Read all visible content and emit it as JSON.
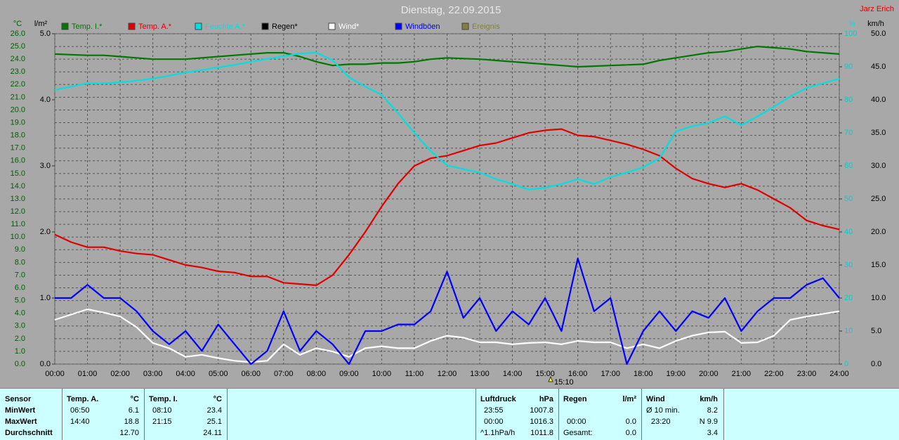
{
  "chart_data": {
    "type": "line",
    "title": "Dienstag, 22.09.2015",
    "author": "Jarz Erich",
    "axis_labels": {
      "y": "°C",
      "y2": "l/m²",
      "y3": "%",
      "y4": "km/h"
    },
    "x": [
      0,
      0.5,
      1,
      1.5,
      2,
      2.5,
      3,
      3.5,
      4,
      4.5,
      5,
      5.5,
      6,
      6.5,
      7,
      7.5,
      8,
      8.5,
      9,
      9.5,
      10,
      10.5,
      11,
      11.5,
      12,
      12.5,
      13,
      13.5,
      14,
      14.5,
      15,
      15.5,
      16,
      16.5,
      17,
      17.5,
      18,
      18.5,
      19,
      19.5,
      20,
      20.5,
      21,
      21.5,
      22,
      22.5,
      23,
      23.5,
      24
    ],
    "xlim": [
      0,
      24
    ],
    "xticks": [
      {
        "value": 0,
        "label": "00:00"
      },
      {
        "value": 1,
        "label": "01:00"
      },
      {
        "value": 2,
        "label": "02:00"
      },
      {
        "value": 3,
        "label": "03:00"
      },
      {
        "value": 4,
        "label": "04:00"
      },
      {
        "value": 5,
        "label": "05:00"
      },
      {
        "value": 6,
        "label": "06:00"
      },
      {
        "value": 7,
        "label": "07:00"
      },
      {
        "value": 8,
        "label": "08:00"
      },
      {
        "value": 9,
        "label": "09:00"
      },
      {
        "value": 10,
        "label": "10:00"
      },
      {
        "value": 11,
        "label": "11:00"
      },
      {
        "value": 12,
        "label": "12:00"
      },
      {
        "value": 13,
        "label": "13:00"
      },
      {
        "value": 14,
        "label": "14:00"
      },
      {
        "value": 15,
        "label": "15:00"
      },
      {
        "value": 16,
        "label": "16:00"
      },
      {
        "value": 17,
        "label": "17:00"
      },
      {
        "value": 18,
        "label": "18:00"
      },
      {
        "value": 19,
        "label": "19:00"
      },
      {
        "value": 20,
        "label": "20:00"
      },
      {
        "value": 21,
        "label": "21:00"
      },
      {
        "value": 22,
        "label": "22:00"
      },
      {
        "value": 23,
        "label": "23:00"
      },
      {
        "value": 24,
        "label": "24:00"
      }
    ],
    "ylim": [
      0,
      26
    ],
    "yticks": [
      {
        "value": 0,
        "label": "0.0"
      },
      {
        "value": 1,
        "label": "1.0"
      },
      {
        "value": 2,
        "label": "2.0"
      },
      {
        "value": 3,
        "label": "3.0"
      },
      {
        "value": 4,
        "label": "4.0"
      },
      {
        "value": 5,
        "label": "5.0"
      },
      {
        "value": 6,
        "label": "6.0"
      },
      {
        "value": 7,
        "label": "7.0"
      },
      {
        "value": 8,
        "label": "8.0"
      },
      {
        "value": 9,
        "label": "9.0"
      },
      {
        "value": 10,
        "label": "10.0"
      },
      {
        "value": 11,
        "label": "11.0"
      },
      {
        "value": 12,
        "label": "12.0"
      },
      {
        "value": 13,
        "label": "13.0"
      },
      {
        "value": 14,
        "label": "14.0"
      },
      {
        "value": 15,
        "label": "15.0"
      },
      {
        "value": 16,
        "label": "16.0"
      },
      {
        "value": 17,
        "label": "17.0"
      },
      {
        "value": 18,
        "label": "18.0"
      },
      {
        "value": 19,
        "label": "19.0"
      },
      {
        "value": 20,
        "label": "20.0"
      },
      {
        "value": 21,
        "label": "21.0"
      },
      {
        "value": 22,
        "label": "22.0"
      },
      {
        "value": 23,
        "label": "23.0"
      },
      {
        "value": 24,
        "label": "24.0"
      },
      {
        "value": 25,
        "label": "25.0"
      },
      {
        "value": 26,
        "label": "26.0"
      }
    ],
    "y2lim": [
      0,
      5
    ],
    "y2ticks": [
      {
        "value": 0,
        "label": "0.0"
      },
      {
        "value": 1,
        "label": "1.0"
      },
      {
        "value": 2,
        "label": "2.0"
      },
      {
        "value": 3,
        "label": "3.0"
      },
      {
        "value": 4,
        "label": "4.0"
      },
      {
        "value": 5,
        "label": "5.0"
      }
    ],
    "y3lim": [
      0,
      100
    ],
    "y3ticks": [
      0,
      10,
      20,
      30,
      40,
      50,
      60,
      70,
      80,
      90,
      100
    ],
    "y4lim": [
      0,
      50
    ],
    "y4ticks": [
      {
        "value": 0,
        "label": "0.0"
      },
      {
        "value": 5,
        "label": "5.0"
      },
      {
        "value": 10,
        "label": "10.0"
      },
      {
        "value": 15,
        "label": "15.0"
      },
      {
        "value": 20,
        "label": "20.0"
      },
      {
        "value": 25,
        "label": "25.0"
      },
      {
        "value": 30,
        "label": "30.0"
      },
      {
        "value": 35,
        "label": "35.0"
      },
      {
        "value": 40,
        "label": "40.0"
      },
      {
        "value": 45,
        "label": "45.0"
      },
      {
        "value": 50,
        "label": "50.0"
      }
    ],
    "grid": true,
    "series": [
      {
        "name": "Temp. I.*",
        "color": "#007800",
        "axis": "y",
        "values": [
          24.4,
          24.35,
          24.3,
          24.3,
          24.2,
          24.1,
          24.0,
          24.0,
          24.0,
          24.1,
          24.2,
          24.3,
          24.4,
          24.5,
          24.5,
          24.2,
          23.8,
          23.5,
          23.6,
          23.6,
          23.7,
          23.7,
          23.8,
          24.0,
          24.1,
          24.05,
          24.0,
          23.9,
          23.8,
          23.7,
          23.6,
          23.5,
          23.4,
          23.45,
          23.5,
          23.55,
          23.6,
          23.9,
          24.1,
          24.3,
          24.5,
          24.6,
          24.8,
          25.0,
          24.9,
          24.8,
          24.6,
          24.5,
          24.4
        ]
      },
      {
        "name": "Temp. A.*",
        "color": "#e00000",
        "axis": "y",
        "values": [
          10.2,
          9.6,
          9.2,
          9.2,
          8.9,
          8.7,
          8.6,
          8.2,
          7.8,
          7.6,
          7.3,
          7.2,
          6.9,
          6.9,
          6.4,
          6.3,
          6.2,
          7.0,
          8.6,
          10.4,
          12.4,
          14.2,
          15.6,
          16.2,
          16.4,
          16.8,
          17.2,
          17.4,
          17.8,
          18.2,
          18.4,
          18.5,
          18.0,
          17.9,
          17.6,
          17.3,
          16.9,
          16.4,
          15.4,
          14.6,
          14.2,
          13.9,
          14.2,
          13.7,
          13.0,
          12.3,
          11.3,
          10.9,
          10.6
        ]
      },
      {
        "name": "Feuchte A.*",
        "color": "#00e0e0",
        "axis": "y3",
        "values": [
          83,
          84,
          85,
          85,
          85.3,
          85.8,
          86.4,
          87.3,
          88.3,
          89,
          89.8,
          90.6,
          91.5,
          92.4,
          93.2,
          94,
          94.3,
          92,
          86.8,
          84,
          81.5,
          76,
          70,
          64.5,
          60.2,
          59,
          58,
          56,
          54.5,
          52.8,
          53.4,
          54.5,
          56,
          54.5,
          56.6,
          58,
          59.6,
          62.3,
          70.4,
          72,
          73,
          75,
          72.3,
          75,
          77.9,
          81,
          83.6,
          85,
          86.4
        ]
      },
      {
        "name": "Regen*",
        "color": "#000000",
        "axis": "y2"
      },
      {
        "name": "Wind*",
        "color": "#ffffff",
        "axis": "y4",
        "values": [
          6.7,
          7.5,
          8.3,
          7.8,
          7.2,
          5.6,
          3.2,
          2.4,
          1.1,
          1.4,
          0.9,
          0.5,
          0.3,
          0.5,
          3.0,
          1.4,
          2.4,
          1.9,
          1.1,
          2.4,
          2.7,
          2.4,
          2.4,
          3.5,
          4.3,
          4.0,
          3.3,
          3.3,
          3.0,
          3.2,
          3.3,
          3.0,
          3.5,
          3.3,
          3.3,
          2.4,
          3.0,
          2.4,
          3.5,
          4.3,
          4.8,
          4.9,
          3.2,
          3.3,
          4.3,
          6.7,
          7.2,
          7.6,
          8.0
        ]
      },
      {
        "name": "Windböen",
        "color": "#0000ff",
        "axis": "y4",
        "values": [
          10,
          10,
          12,
          10,
          10,
          8,
          5,
          3,
          5,
          2,
          6,
          3,
          0,
          2,
          8,
          2,
          5,
          3,
          0,
          5,
          5,
          6,
          6,
          8,
          14,
          7,
          10,
          5,
          8,
          6,
          10,
          5,
          16,
          8,
          10,
          0,
          5,
          8,
          5,
          8,
          7,
          10,
          5,
          8,
          10,
          10,
          12,
          13,
          10
        ]
      },
      {
        "name": "Ereignis",
        "color": "#808040",
        "axis": "y3"
      }
    ],
    "annotation": {
      "text": "15:10",
      "x": 15.17
    }
  },
  "stats": {
    "sensor": {
      "header": "Sensor",
      "rows": [
        "MinWert",
        "MaxWert",
        "Durchschnitt"
      ]
    },
    "temp_a": {
      "header": "Temp. A.",
      "unit": "°C",
      "min": [
        "06:50",
        "6.1"
      ],
      "max": [
        "14:40",
        "18.8"
      ],
      "avg": "12.70"
    },
    "temp_i": {
      "header": "Temp. I.",
      "unit": "°C",
      "min": [
        "08:10",
        "23.4"
      ],
      "max": [
        "21:15",
        "25.1"
      ],
      "avg": "24.11"
    },
    "pressure": {
      "header": "Luftdruck",
      "unit": "hPa",
      "min": [
        "23:55",
        "1007.8"
      ],
      "max": [
        "00:00",
        "1016.3"
      ],
      "trend": [
        "^1.1hPa/h",
        "1011.8"
      ]
    },
    "rain": {
      "header": "Regen",
      "unit": "l/m²",
      "last": [
        "00:00",
        "0.0"
      ],
      "total": [
        "Gesamt:",
        "0.0"
      ]
    },
    "wind": {
      "header": "Wind",
      "unit": "km/h",
      "avg10": [
        "Ø 10 min.",
        "8.2"
      ],
      "max": [
        "23:20",
        "N 9.9"
      ],
      "avg": "3.4"
    }
  }
}
